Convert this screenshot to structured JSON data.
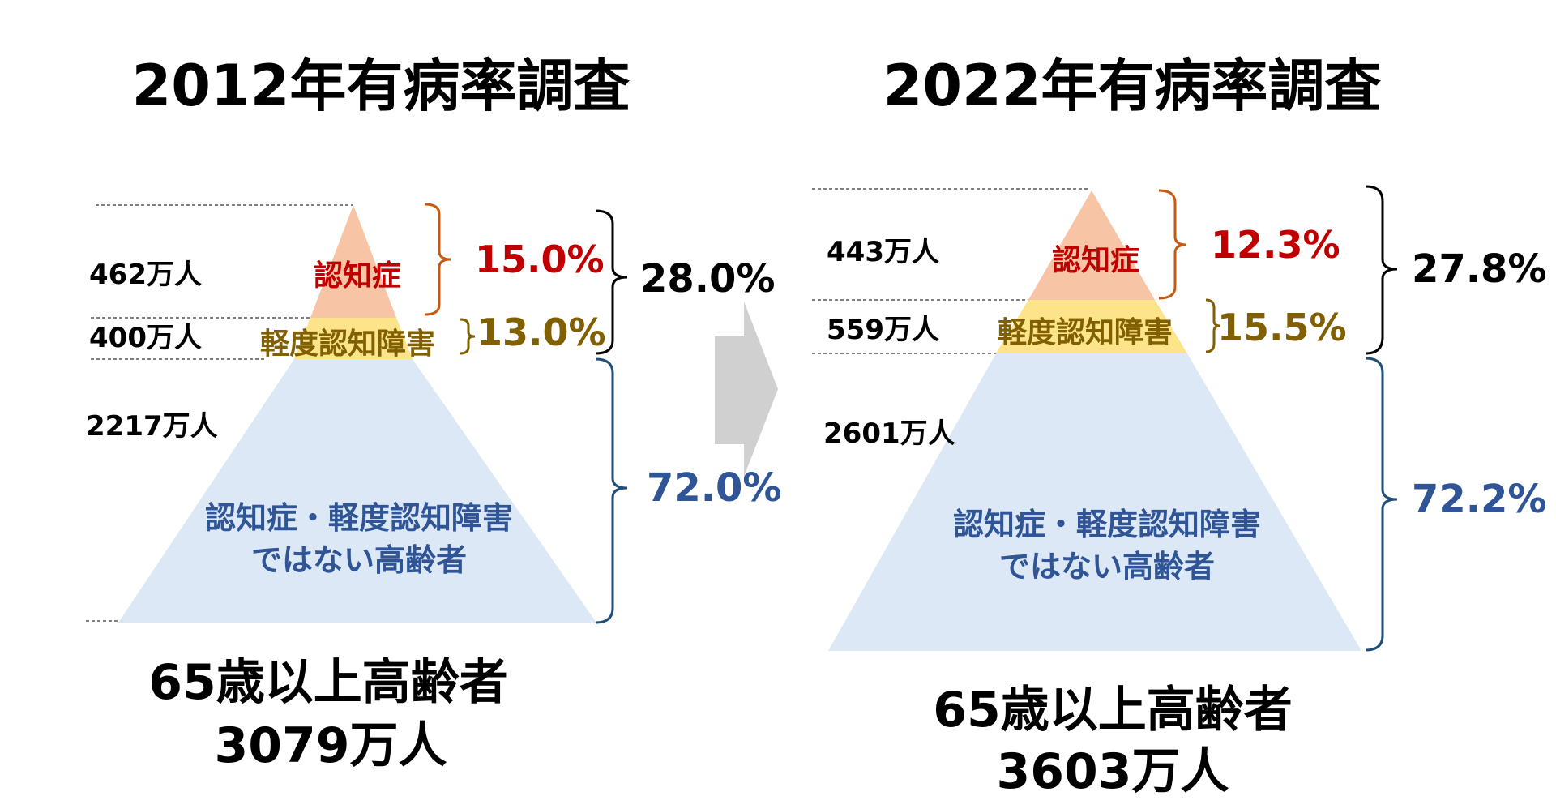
{
  "colors": {
    "dementia_fill": "#f7c4a6",
    "dementia_text": "#c00000",
    "dementia_bracket": "#c55a11",
    "mci_fill": "#fde38a",
    "mci_text": "#806000",
    "healthy_fill": "#dce8f5",
    "healthy_text": "#2f5597",
    "healthy_bracket": "#1f4e79",
    "arrow": "#d0d0d0",
    "dark": "#000000"
  },
  "arrow": {
    "icon": "right-arrow-icon"
  },
  "surveys": [
    {
      "title": "2012年有病率調査",
      "dementia": {
        "count": "462万人",
        "label": "認知症",
        "pct": "15.0%",
        "value_man": 462,
        "percent": 15.0
      },
      "mci": {
        "count": "400万人",
        "label": "軽度認知障害",
        "pct": "13.0%",
        "value_man": 400,
        "percent": 13.0
      },
      "combined_pct": "28.0%",
      "healthy": {
        "count": "2217万人",
        "label_line1": "認知症・軽度認知障害",
        "label_line2": "ではない高齢者",
        "pct": "72.0%",
        "value_man": 2217,
        "percent": 72.0
      },
      "total_label": "65歳以上高齢者",
      "total_count": "3079万人"
    },
    {
      "title": "2022年有病率調査",
      "dementia": {
        "count": "443万人",
        "label": "認知症",
        "pct": "12.3%",
        "value_man": 443,
        "percent": 12.3
      },
      "mci": {
        "count": "559万人",
        "label": "軽度認知障害",
        "pct": "15.5%",
        "value_man": 559,
        "percent": 15.5
      },
      "combined_pct": "27.8%",
      "healthy": {
        "count": "2601万人",
        "label_line1": "認知症・軽度認知障害",
        "label_line2": "ではない高齢者",
        "pct": "72.2%",
        "value_man": 2601,
        "percent": 72.2
      },
      "total_label": "65歳以上高齢者",
      "total_count": "3603万人"
    }
  ]
}
